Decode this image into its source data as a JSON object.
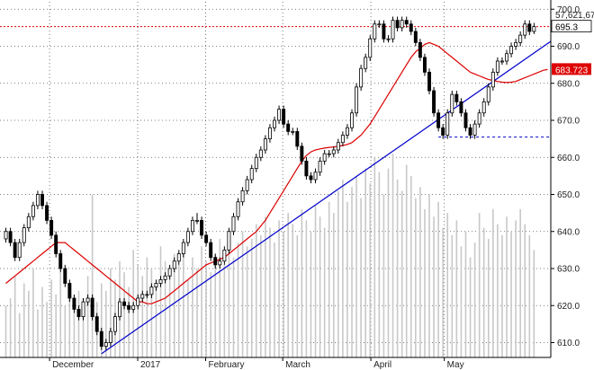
{
  "chart_data": {
    "type": "candlestick",
    "colors": {
      "background": "#ffffff",
      "grid": "#555555",
      "up_candle": "#ffffff",
      "down_candle": "#000000",
      "volume": "#c8c8c8",
      "moving_average": "#dd0000",
      "trendline": "#0000cc",
      "resistance": "#dd0000",
      "support": "#0000cc",
      "price_tag_bg": "#ffffff",
      "ma_tag_bg": "#dd0000"
    },
    "y_axis": {
      "side": "right",
      "range": [
        606,
        702
      ],
      "ticks": [
        "610.0",
        "620.0",
        "630.0",
        "640.0",
        "650.0",
        "660.0",
        "670.0",
        "680.0",
        "690.0",
        "700.0"
      ],
      "tick_values": [
        610,
        620,
        630,
        640,
        650,
        660,
        670,
        680,
        690,
        700
      ]
    },
    "x_axis": {
      "range": [
        0,
        150
      ],
      "labels": [
        "December",
        "2017",
        "February",
        "March",
        "April",
        "May"
      ],
      "label_positions": [
        13.5,
        37.5,
        56,
        77,
        101,
        121
      ],
      "divider_positions": [
        13.5,
        37.5,
        56,
        77,
        101,
        121
      ]
    },
    "annotations": {
      "value_label": "57,621,67",
      "last_price": "695.3",
      "last_price_value": 695.3,
      "ma_value": "683.723",
      "ma_value_num": 683.72,
      "resistance_level": 695.3,
      "support_level": 665.5,
      "support_range": [
        95,
        123
      ],
      "trendline": {
        "from": [
          21,
          607
        ],
        "to": [
          131,
          701
        ]
      }
    },
    "candles": {
      "open": [
        638,
        640,
        637,
        633,
        637,
        641,
        644,
        647,
        650,
        647,
        643,
        639,
        634,
        630,
        626,
        622,
        619,
        617,
        621,
        622,
        617,
        613,
        609,
        610,
        613,
        617,
        621,
        620,
        619,
        620,
        622,
        623,
        623,
        625,
        626,
        627,
        628,
        630,
        632,
        634,
        637,
        640,
        643,
        643,
        639,
        637,
        633,
        631,
        632,
        635,
        640,
        644,
        648,
        651,
        654,
        657,
        660,
        662,
        665,
        668,
        670,
        673,
        669,
        667,
        667,
        663,
        659,
        655,
        654,
        656,
        659,
        661,
        661,
        662,
        664,
        666,
        668,
        672,
        679,
        684,
        687,
        692,
        696,
        696,
        692,
        692,
        697,
        695,
        697,
        696,
        694,
        691,
        687,
        683,
        678,
        672,
        668,
        666,
        672,
        677,
        675,
        672,
        668,
        666,
        669,
        672,
        675,
        679,
        683,
        686,
        686,
        688,
        690,
        691,
        693,
        696,
        694
      ],
      "close": [
        640,
        637,
        633,
        637,
        641,
        644,
        647,
        650,
        647,
        643,
        639,
        634,
        630,
        626,
        622,
        619,
        617,
        621,
        622,
        617,
        613,
        609,
        610,
        613,
        617,
        621,
        620,
        619,
        620,
        622,
        623,
        623,
        625,
        626,
        627,
        628,
        630,
        632,
        634,
        637,
        640,
        643,
        643,
        639,
        637,
        633,
        631,
        632,
        635,
        640,
        644,
        648,
        651,
        654,
        657,
        660,
        662,
        665,
        668,
        670,
        673,
        669,
        667,
        667,
        663,
        659,
        655,
        654,
        656,
        659,
        661,
        661,
        662,
        664,
        666,
        668,
        672,
        679,
        684,
        687,
        692,
        696,
        696,
        692,
        692,
        697,
        695,
        697,
        696,
        694,
        691,
        687,
        683,
        678,
        672,
        668,
        666,
        672,
        677,
        675,
        672,
        668,
        666,
        669,
        672,
        675,
        679,
        683,
        686,
        686,
        688,
        690,
        691,
        693,
        696,
        694,
        695.3
      ],
      "high": [
        641,
        641,
        638,
        638,
        642,
        645,
        648,
        651,
        651,
        648,
        644,
        640,
        635,
        631,
        627,
        623,
        620,
        622,
        623,
        623,
        618,
        614,
        611,
        614,
        618,
        622,
        622,
        621,
        621,
        623,
        624,
        624,
        626,
        627,
        628,
        629,
        631,
        633,
        635,
        638,
        641,
        644,
        645,
        644,
        640,
        638,
        634,
        633,
        636,
        641,
        645,
        649,
        652,
        655,
        658,
        661,
        663,
        666,
        669,
        671,
        674,
        674,
        670,
        668,
        668,
        664,
        660,
        656,
        657,
        660,
        662,
        662,
        663,
        665,
        667,
        669,
        673,
        680,
        685,
        688,
        693,
        697,
        697,
        697,
        693,
        698,
        698,
        698,
        698,
        697,
        695,
        692,
        688,
        684,
        679,
        673,
        669,
        673,
        678,
        678,
        676,
        673,
        669,
        670,
        673,
        676,
        680,
        684,
        687,
        687,
        689,
        691,
        692,
        694,
        697,
        697,
        696.3
      ],
      "low": [
        637,
        636,
        632,
        632,
        636,
        640,
        643,
        646,
        646,
        642,
        638,
        633,
        629,
        625,
        621,
        618,
        616,
        616,
        620,
        616,
        612,
        608,
        608,
        609,
        612,
        616,
        619,
        618,
        618,
        619,
        621,
        622,
        622,
        624,
        625,
        626,
        627,
        629,
        631,
        633,
        636,
        639,
        642,
        638,
        636,
        632,
        630,
        630,
        631,
        634,
        639,
        643,
        647,
        650,
        653,
        656,
        659,
        661,
        664,
        667,
        669,
        668,
        666,
        666,
        662,
        658,
        654,
        653,
        653,
        655,
        658,
        660,
        660,
        661,
        663,
        665,
        667,
        671,
        678,
        683,
        686,
        691,
        695,
        691,
        691,
        691,
        694,
        694,
        695,
        693,
        690,
        686,
        682,
        677,
        671,
        667,
        665,
        665,
        671,
        674,
        671,
        667,
        665,
        665,
        668,
        671,
        674,
        678,
        682,
        685,
        685,
        687,
        689,
        690,
        692,
        693,
        693.3
      ]
    },
    "moving_average": [
      626,
      627,
      628,
      629,
      630,
      631,
      632,
      633,
      634,
      635,
      636,
      637,
      637,
      637,
      636,
      635,
      634,
      633,
      632,
      631,
      630,
      629,
      628,
      627,
      626,
      625,
      624,
      623,
      622,
      621,
      621,
      620.5,
      620.5,
      621,
      621.5,
      622,
      623,
      624,
      625,
      626,
      627,
      628,
      629,
      630,
      631,
      631.5,
      632,
      632.5,
      633,
      634,
      635,
      636,
      637,
      638,
      639,
      640,
      641.5,
      643,
      645,
      647,
      649,
      651,
      653,
      655,
      657,
      659,
      660.5,
      661.5,
      662,
      662.3,
      662.5,
      662.7,
      662.8,
      663,
      663.2,
      663.5,
      664,
      665,
      666,
      667.5,
      669,
      671,
      673,
      675,
      677,
      679,
      681,
      683,
      685,
      687,
      688.5,
      689.5,
      690.5,
      691,
      690.5,
      690,
      689,
      688,
      687,
      686,
      685,
      684,
      683,
      682.5,
      682,
      681.5,
      681,
      680.8,
      680.5,
      680.3,
      680.2,
      680.3,
      680.5,
      681,
      681.5,
      682,
      682.5,
      683,
      683.5,
      683.72
    ],
    "volume": [
      620,
      622,
      628,
      618,
      626,
      624,
      630,
      619,
      625,
      621,
      627,
      623,
      629,
      620,
      626,
      618,
      624,
      622,
      628,
      650,
      621,
      626,
      624,
      630,
      627,
      632,
      629,
      625,
      635,
      631,
      628,
      633,
      630,
      626,
      636,
      632,
      629,
      634,
      631,
      635,
      627,
      633,
      630,
      636,
      632,
      629,
      634,
      638,
      631,
      635,
      633,
      637,
      640,
      636,
      638,
      642,
      639,
      644,
      641,
      637,
      643,
      640,
      645,
      642,
      639,
      646,
      643,
      640,
      647,
      644,
      641,
      648,
      645,
      651,
      654,
      648,
      652,
      655,
      649,
      657,
      653,
      660,
      656,
      650,
      657,
      661,
      654,
      651,
      658,
      655,
      649,
      652,
      646,
      650,
      644,
      648,
      641,
      645,
      639,
      643,
      636,
      640,
      633,
      637,
      645,
      641,
      638,
      646,
      642,
      639,
      644,
      640,
      643,
      646,
      642,
      639,
      635
    ]
  }
}
